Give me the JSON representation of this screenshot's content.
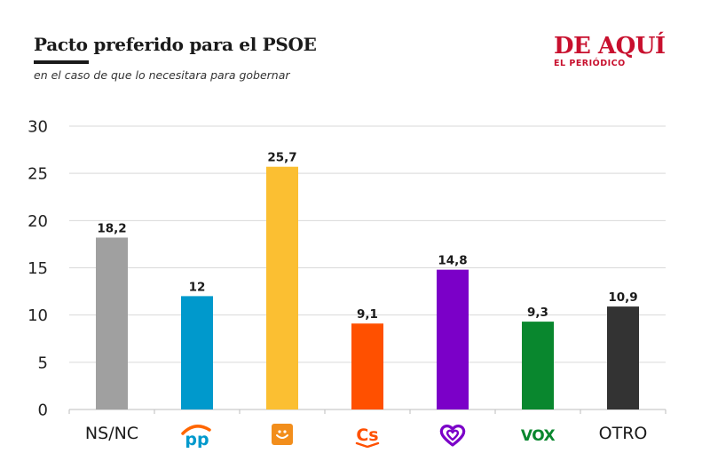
{
  "header": {
    "title": "Pacto preferido para el PSOE",
    "subtitle": "en el caso de que lo necesitara para gobernar"
  },
  "brand": {
    "name": "DE AQUÍ",
    "tagline": "EL PERIÓDICO",
    "color": "#c8102e"
  },
  "chart_data": {
    "type": "bar",
    "title": "Pacto preferido para el PSOE",
    "subtitle": "en el caso de que lo necesitara para gobernar",
    "xlabel": "",
    "ylabel": "",
    "ylim": [
      0,
      30
    ],
    "yticks": [
      0,
      5,
      10,
      15,
      20,
      25,
      30
    ],
    "grid": true,
    "legend": "none",
    "categories": [
      "NS/NC",
      "PP",
      "Adelante",
      "Cs",
      "Podemos",
      "VOX",
      "OTRO"
    ],
    "values": [
      18.2,
      12,
      25.7,
      9.1,
      14.8,
      9.3,
      10.9
    ],
    "value_labels": [
      "18,2",
      "12",
      "25,7",
      "9,1",
      "14,8",
      "9,3",
      "10,9"
    ],
    "colors": [
      "#a0a0a0",
      "#0099cc",
      "#fbbf32",
      "#ff5000",
      "#7b00c8",
      "#09872e",
      "#333333"
    ],
    "category_display": [
      {
        "kind": "text",
        "text": "NS/NC"
      },
      {
        "kind": "icon",
        "icon": "pp-logo-icon",
        "text": "pp",
        "color": "#0099cc",
        "accent": "#ff6600"
      },
      {
        "kind": "icon",
        "icon": "adelante-logo-icon",
        "color": "#f28e1c"
      },
      {
        "kind": "icon",
        "icon": "cs-logo-icon",
        "text": "Cs",
        "color": "#ff5000"
      },
      {
        "kind": "icon",
        "icon": "heart-logo-icon",
        "color": "#7b00c8"
      },
      {
        "kind": "icon",
        "icon": "vox-logo-icon",
        "text": "VOX",
        "color": "#09872e"
      },
      {
        "kind": "text",
        "text": "OTRO"
      }
    ]
  }
}
